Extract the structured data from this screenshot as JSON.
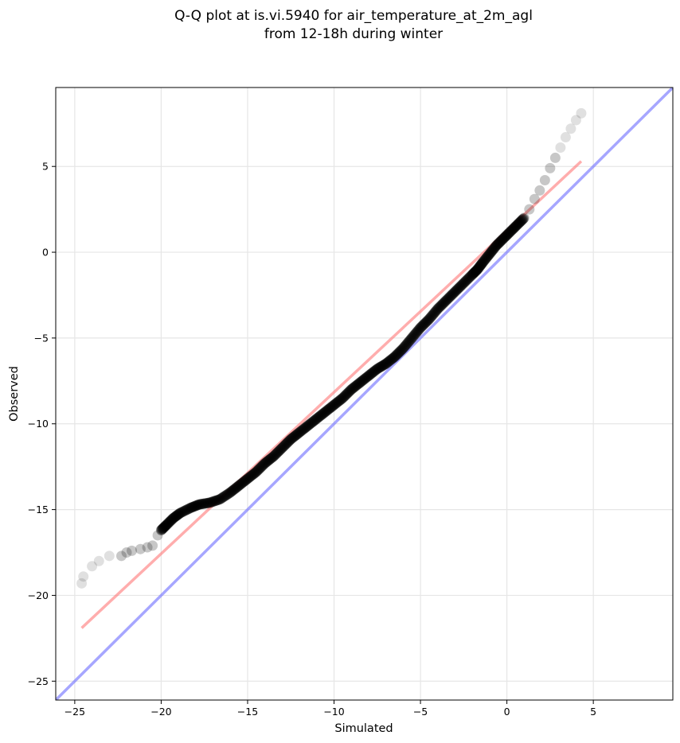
{
  "chart_data": {
    "type": "scatter",
    "title_line1": "Q-Q plot at is.vi.5940 for air_temperature_at_2m_agl",
    "title_line2": "from 12-18h during winter",
    "xlabel": "Simulated",
    "ylabel": "Observed",
    "xlim": [
      -26.1,
      9.6
    ],
    "ylim": [
      -26.1,
      9.6
    ],
    "xticks": [
      -25,
      -20,
      -15,
      -10,
      -5,
      0,
      5
    ],
    "yticks": [
      -25,
      -20,
      -15,
      -10,
      -5,
      0,
      5
    ],
    "xtick_labels": [
      "−25",
      "−20",
      "−15",
      "−10",
      "−5",
      "0",
      "5"
    ],
    "ytick_labels": [
      "−25",
      "−20",
      "−15",
      "−10",
      "−5",
      "0",
      "5"
    ],
    "grid": true,
    "point_color": "#000000",
    "fit_color": "#ff7777",
    "identity_color": "#7777ff",
    "quantiles": {
      "x": [
        -24.6,
        -24.5,
        -24.0,
        -23.6,
        -23.0,
        -22.3,
        -22.0,
        -21.7,
        -21.2,
        -20.8,
        -20.5,
        -20.2,
        -20.0,
        -19.7,
        -19.3,
        -18.9,
        -18.3,
        -17.8,
        -17.2,
        -16.6,
        -16.0,
        -15.5,
        -15.0,
        -14.5,
        -14.0,
        -13.5,
        -13.0,
        -12.5,
        -12.0,
        -11.5,
        -11.0,
        -10.5,
        -10.0,
        -9.5,
        -9.0,
        -8.5,
        -8.0,
        -7.5,
        -7.0,
        -6.5,
        -6.0,
        -5.5,
        -5.0,
        -4.5,
        -4.0,
        -3.5,
        -3.0,
        -2.5,
        -2.0,
        -1.7,
        -1.4,
        -1.0,
        -0.6,
        -0.2,
        0.2,
        0.6,
        1.0,
        1.3,
        1.6,
        1.9,
        2.2,
        2.5,
        2.8,
        3.1,
        3.4,
        3.7,
        4.0,
        4.3
      ],
      "y": [
        -19.3,
        -18.9,
        -18.3,
        -18.0,
        -17.7,
        -17.7,
        -17.5,
        -17.4,
        -17.3,
        -17.2,
        -17.1,
        -16.5,
        -16.2,
        -15.9,
        -15.5,
        -15.2,
        -14.9,
        -14.7,
        -14.6,
        -14.4,
        -14.0,
        -13.6,
        -13.2,
        -12.8,
        -12.3,
        -11.9,
        -11.4,
        -10.9,
        -10.5,
        -10.1,
        -9.7,
        -9.3,
        -8.9,
        -8.5,
        -8.0,
        -7.6,
        -7.2,
        -6.8,
        -6.5,
        -6.1,
        -5.6,
        -5.0,
        -4.4,
        -3.9,
        -3.3,
        -2.8,
        -2.3,
        -1.8,
        -1.3,
        -1.0,
        -0.6,
        -0.1,
        0.4,
        0.8,
        1.2,
        1.6,
        2.0,
        2.5,
        3.1,
        3.6,
        4.2,
        4.9,
        5.5,
        6.1,
        6.7,
        7.2,
        7.7,
        8.1
      ]
    },
    "fit_line": {
      "x": [
        -24.6,
        4.3
      ],
      "y": [
        -21.9,
        5.3
      ]
    },
    "identity_line": {
      "x": [
        -26.1,
        9.6
      ],
      "y": [
        -26.1,
        9.6
      ]
    }
  }
}
